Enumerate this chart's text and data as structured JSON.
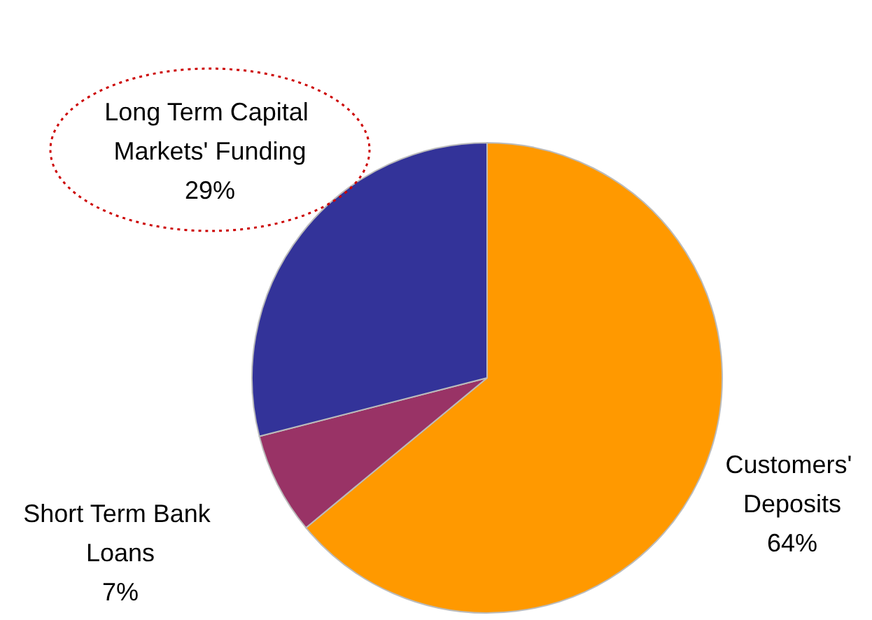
{
  "chart_data": {
    "type": "pie",
    "categories": [
      "Customers' Deposits",
      "Short Term Bank Loans",
      "Long Term Capital Markets' Funding"
    ],
    "values": [
      64,
      7,
      29
    ],
    "colors": [
      "#ff9900",
      "#993366",
      "#333399"
    ],
    "value_labels": [
      "64%",
      "7%",
      "29%"
    ]
  }
}
